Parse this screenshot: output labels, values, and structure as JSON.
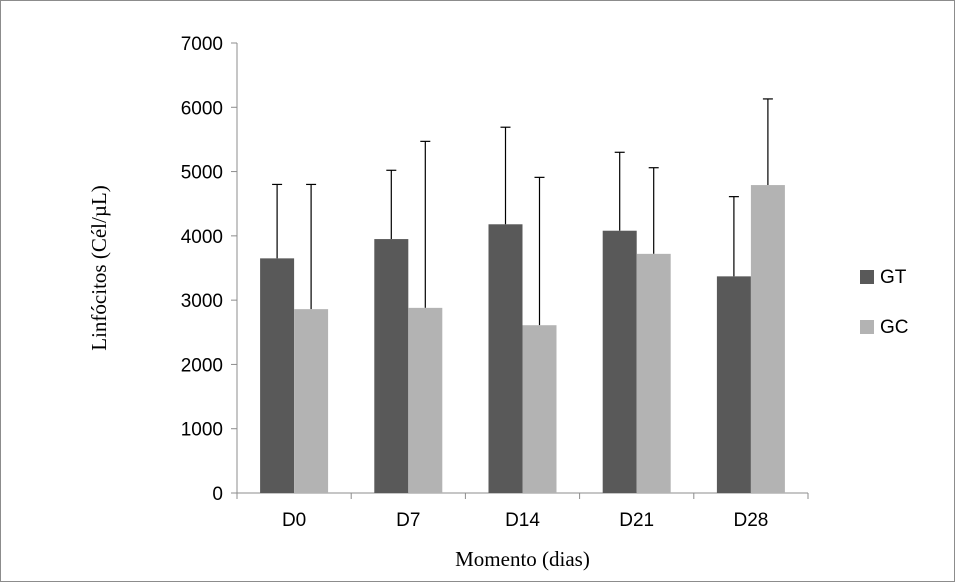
{
  "chart_data": {
    "type": "bar",
    "title": "",
    "xlabel": "Momento (dias)",
    "ylabel": "Linfócitos  (Cél/µL)",
    "ylim": [
      0,
      7000
    ],
    "yticks": [
      "0",
      "1000",
      "2000",
      "3000",
      "4000",
      "5000",
      "6000",
      "7000"
    ],
    "categories": [
      "D0",
      "D7",
      "D14",
      "D21",
      "D28"
    ],
    "grid": false,
    "legend_position": "right",
    "series": [
      {
        "name": "GT",
        "color": "#595959",
        "values": [
          3650,
          3950,
          4180,
          4080,
          3370
        ],
        "error_upper": [
          4800,
          5020,
          5690,
          5300,
          4610
        ]
      },
      {
        "name": "GC",
        "color": "#b3b3b3",
        "values": [
          2860,
          2880,
          2610,
          3720,
          4790
        ],
        "error_upper": [
          4800,
          5470,
          4910,
          5060,
          6130
        ]
      }
    ]
  }
}
